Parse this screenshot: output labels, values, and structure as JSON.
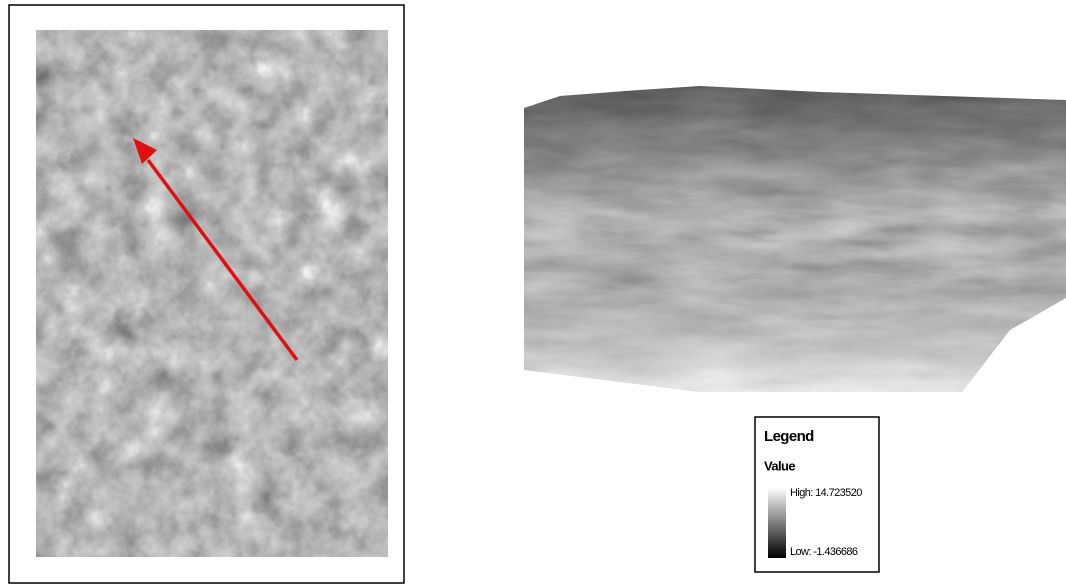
{
  "legend": {
    "title": "Legend",
    "field": "Value",
    "high": "High: 14.723520",
    "low": "Low: -1.436686"
  }
}
